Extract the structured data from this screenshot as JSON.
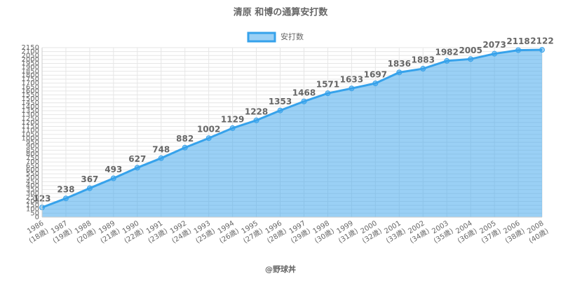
{
  "chart_data": {
    "type": "area",
    "title": "清原 和博の通算安打数",
    "footer": "@野球丼",
    "categories": [
      [
        "1986",
        "(18歳)"
      ],
      [
        "1987",
        "(19歳)"
      ],
      [
        "1988",
        "(20歳)"
      ],
      [
        "1989",
        "(21歳)"
      ],
      [
        "1990",
        "(22歳)"
      ],
      [
        "1991",
        "(23歳)"
      ],
      [
        "1992",
        "(24歳)"
      ],
      [
        "1993",
        "(25歳)"
      ],
      [
        "1994",
        "(26歳)"
      ],
      [
        "1995",
        "(27歳)"
      ],
      [
        "1996",
        "(28歳)"
      ],
      [
        "1997",
        "(29歳)"
      ],
      [
        "1998",
        "(30歳)"
      ],
      [
        "1999",
        "(31歳)"
      ],
      [
        "2000",
        "(32歳)"
      ],
      [
        "2001",
        "(33歳)"
      ],
      [
        "2002",
        "(34歳)"
      ],
      [
        "2003",
        "(35歳)"
      ],
      [
        "2004",
        "(36歳)"
      ],
      [
        "2005",
        "(37歳)"
      ],
      [
        "2006",
        "(38歳)"
      ],
      [
        "2008",
        "(40歳)"
      ]
    ],
    "series": [
      {
        "name": "安打数",
        "color": "#36a2eb",
        "fill": "rgba(54,162,235,0.5)",
        "values": [
          123,
          238,
          367,
          493,
          627,
          748,
          882,
          1002,
          1129,
          1228,
          1353,
          1468,
          1571,
          1633,
          1697,
          1836,
          1883,
          1982,
          2005,
          2073,
          2118,
          2122
        ]
      }
    ],
    "ylim": [
      0,
      2150
    ],
    "yticks": [
      0,
      50,
      100,
      150,
      200,
      250,
      300,
      350,
      400,
      450,
      500,
      550,
      600,
      650,
      700,
      750,
      800,
      850,
      900,
      950,
      1000,
      1050,
      1100,
      1150,
      1200,
      1250,
      1300,
      1350,
      1400,
      1450,
      1500,
      1550,
      1600,
      1650,
      1700,
      1750,
      1800,
      1850,
      1900,
      1950,
      2000,
      2050,
      2100,
      2150
    ],
    "grid": true
  }
}
